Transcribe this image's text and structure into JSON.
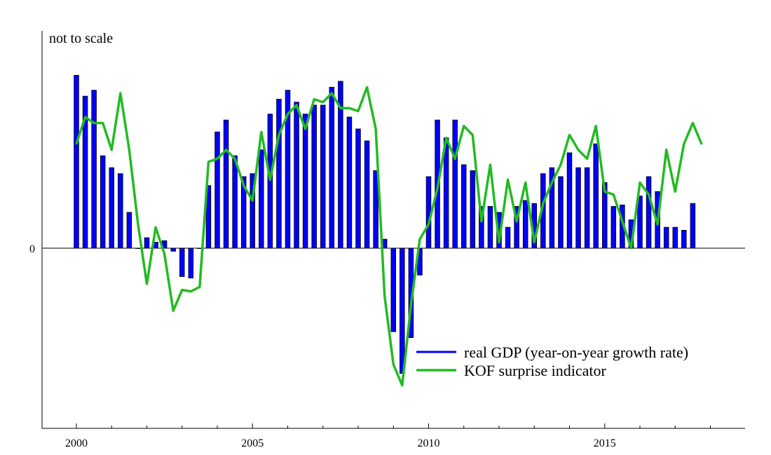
{
  "chart_data": {
    "type": "bar",
    "annotation": "not to scale",
    "y_tick_labels": [
      "0"
    ],
    "x_tick_labels": [
      "2000",
      "2005",
      "2010",
      "2015"
    ],
    "xlim": [
      1999.0,
      2019.0
    ],
    "ylim": [
      -6.0,
      6.5
    ],
    "grid": false,
    "legend_position": "bottom-right",
    "series": [
      {
        "name": "real GDP (year-on-year growth rate)",
        "type": "bar",
        "color": "#0000ff",
        "x": [
          2000.0,
          2000.25,
          2000.5,
          2000.75,
          2001.0,
          2001.25,
          2001.5,
          2001.75,
          2002.0,
          2002.25,
          2002.5,
          2002.75,
          2003.0,
          2003.25,
          2003.5,
          2003.75,
          2004.0,
          2004.25,
          2004.5,
          2004.75,
          2005.0,
          2005.25,
          2005.5,
          2005.75,
          2006.0,
          2006.25,
          2006.5,
          2006.75,
          2007.0,
          2007.25,
          2007.5,
          2007.75,
          2008.0,
          2008.25,
          2008.5,
          2008.75,
          2009.0,
          2009.25,
          2009.5,
          2009.75,
          2010.0,
          2010.25,
          2010.5,
          2010.75,
          2011.0,
          2011.25,
          2011.5,
          2011.75,
          2012.0,
          2012.25,
          2012.5,
          2012.75,
          2013.0,
          2013.25,
          2013.5,
          2013.75,
          2014.0,
          2014.25,
          2014.5,
          2014.75,
          2015.0,
          2015.25,
          2015.5,
          2015.75,
          2016.0,
          2016.25,
          2016.5,
          2016.75,
          2017.0,
          2017.25,
          2017.5
        ],
        "values": [
          5.8,
          5.1,
          5.3,
          3.1,
          2.7,
          2.5,
          1.2,
          0,
          0.35,
          0.2,
          0.25,
          -0.1,
          -0.95,
          -1.0,
          0,
          2.1,
          3.9,
          4.3,
          3.1,
          2.4,
          2.5,
          3.3,
          4.5,
          5.0,
          5.3,
          4.9,
          4.5,
          4.8,
          4.8,
          5.4,
          5.6,
          4.4,
          4.0,
          3.6,
          2.6,
          0.3,
          -2.8,
          -4.2,
          -3.0,
          -0.9,
          2.4,
          4.3,
          3.7,
          4.3,
          2.8,
          2.6,
          1.4,
          1.4,
          1.2,
          0.7,
          1.4,
          1.6,
          1.5,
          2.5,
          2.7,
          2.4,
          3.2,
          2.7,
          2.7,
          3.5,
          2.2,
          1.4,
          1.45,
          0.95,
          1.75,
          2.4,
          1.9,
          0.7,
          0.7,
          0.6,
          1.5
        ]
      },
      {
        "name": "KOF surprise indicator",
        "type": "line",
        "color": "#22bb22",
        "x": [
          2000.0,
          2000.25,
          2000.5,
          2000.75,
          2001.0,
          2001.25,
          2001.5,
          2001.75,
          2002.0,
          2002.25,
          2002.5,
          2002.75,
          2003.0,
          2003.25,
          2003.5,
          2003.75,
          2004.0,
          2004.25,
          2004.5,
          2004.75,
          2005.0,
          2005.25,
          2005.5,
          2005.75,
          2006.0,
          2006.25,
          2006.5,
          2006.75,
          2007.0,
          2007.25,
          2007.5,
          2007.75,
          2008.0,
          2008.25,
          2008.5,
          2008.75,
          2009.0,
          2009.25,
          2009.5,
          2009.75,
          2010.0,
          2010.25,
          2010.5,
          2010.75,
          2011.0,
          2011.25,
          2011.5,
          2011.75,
          2012.0,
          2012.25,
          2012.5,
          2012.75,
          2013.0,
          2013.25,
          2013.5,
          2013.75,
          2014.0,
          2014.25,
          2014.5,
          2014.75,
          2015.0,
          2015.25,
          2015.5,
          2015.75,
          2016.0,
          2016.25,
          2016.5,
          2016.75,
          2017.0,
          2017.25,
          2017.5,
          2017.75
        ],
        "values": [
          3.5,
          4.4,
          4.2,
          4.2,
          3.3,
          5.2,
          3.3,
          0.8,
          -1.2,
          0.7,
          -0.2,
          -2.1,
          -1.4,
          -1.45,
          -1.3,
          2.9,
          3.0,
          3.3,
          3.0,
          2.1,
          1.6,
          3.9,
          2.3,
          3.8,
          4.5,
          4.8,
          4.0,
          5.0,
          4.9,
          5.2,
          4.7,
          4.7,
          4.6,
          5.4,
          4.0,
          -1.6,
          -3.9,
          -4.6,
          -1.9,
          0.3,
          0.8,
          2.0,
          3.7,
          3.0,
          4.1,
          3.8,
          0.9,
          2.8,
          0.2,
          2.3,
          0.9,
          2.2,
          0.2,
          1.5,
          2.2,
          2.8,
          3.8,
          3.3,
          3.0,
          4.1,
          1.9,
          1.8,
          0.9,
          0.0,
          2.2,
          1.8,
          0.8,
          3.3,
          1.9,
          3.5,
          4.2,
          3.5
        ]
      }
    ]
  }
}
